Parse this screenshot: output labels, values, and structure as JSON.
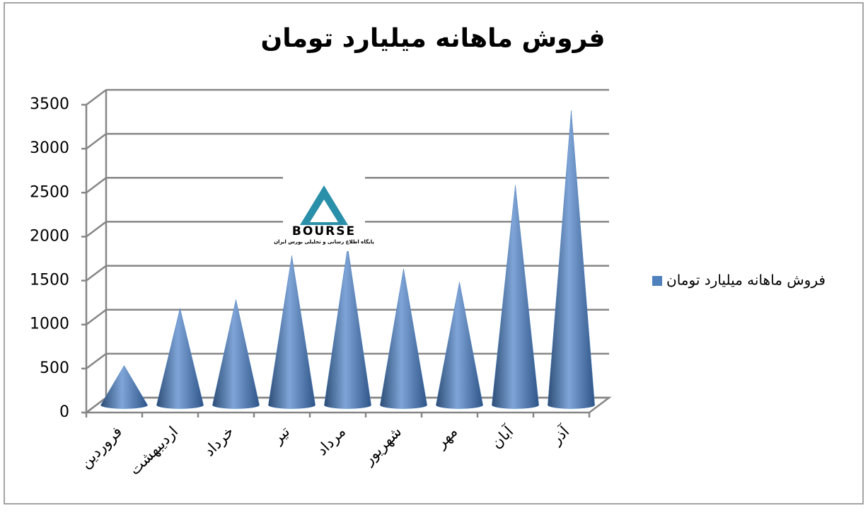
{
  "chart_data": {
    "type": "cone",
    "title": "فروش ماهانه میلیارد تومان",
    "categories": [
      "فروردین",
      "اردیبهشت",
      "خرداد",
      "تیر",
      "مرداد",
      "شهریور",
      "مهر",
      "آبان",
      "آذر"
    ],
    "series": [
      {
        "name": "فروش ماهانه میلیارد تومان",
        "color": "#4f81bd",
        "values": [
          450,
          1100,
          1200,
          1700,
          1800,
          1550,
          1400,
          2500,
          3350
        ]
      }
    ],
    "ylim": [
      0,
      3500
    ],
    "yticks": [
      0,
      500,
      1000,
      1500,
      2000,
      2500,
      3000,
      3500
    ],
    "grid": true,
    "legend": "right",
    "annotations": [
      "BOURSE",
      "پایگاه اطلاع رسانی و تحلیلی بورس ایران"
    ]
  }
}
